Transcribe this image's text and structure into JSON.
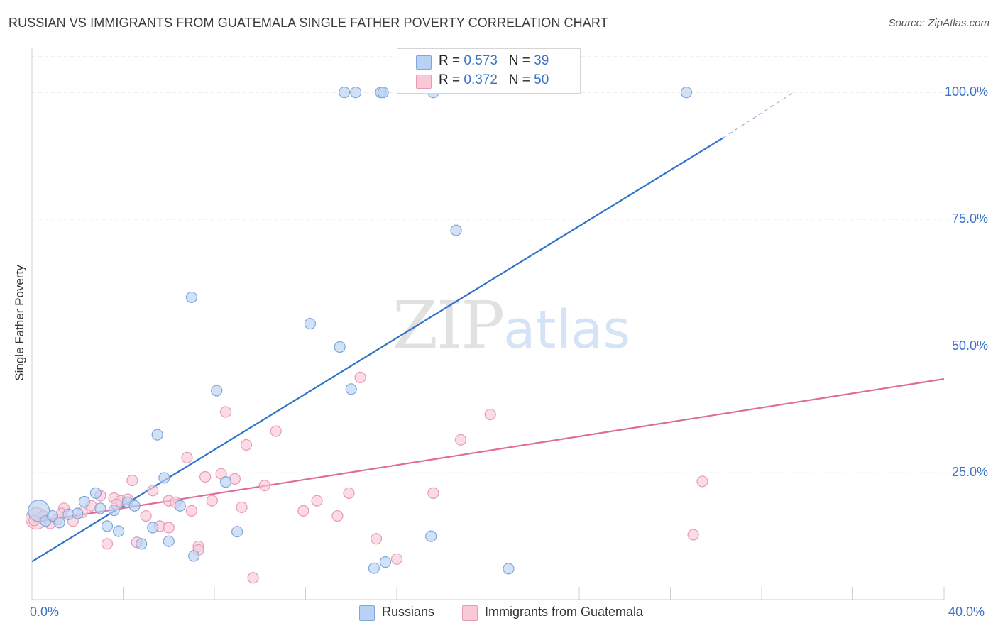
{
  "title": "RUSSIAN VS IMMIGRANTS FROM GUATEMALA SINGLE FATHER POVERTY CORRELATION CHART",
  "source": "Source: ZipAtlas.com",
  "watermark": {
    "zip": "ZIP",
    "atlas": "atlas"
  },
  "legend": {
    "r_label": "R =",
    "n_label": "N =",
    "rows": [
      {
        "r": "0.573",
        "n": "39"
      },
      {
        "r": "0.372",
        "n": "50"
      }
    ]
  },
  "colors": {
    "blue_fill": "#b9d2f3",
    "blue_stroke": "#7ea6dd",
    "blue_line": "#2f74c9",
    "pink_fill": "#f9c9d8",
    "pink_stroke": "#e99ab3",
    "pink_line": "#e06b97",
    "grid": "#e3e3e3",
    "axis": "#cfcfcf",
    "tick_text": "#3a73c8"
  },
  "chart_data": {
    "type": "scatter",
    "title": "RUSSIAN VS IMMIGRANTS FROM GUATEMALA SINGLE FATHER POVERTY CORRELATION CHART",
    "xlabel": "",
    "ylabel": "Single Father Poverty",
    "xlim": [
      0,
      40
    ],
    "ylim": [
      0,
      100
    ],
    "x_tick_labels": [
      "0.0%",
      "40.0%"
    ],
    "y_ticks": [
      25,
      50,
      75,
      100
    ],
    "y_tick_labels": [
      "25.0%",
      "50.0%",
      "75.0%",
      "100.0%"
    ],
    "grid": true,
    "legend_position": "top-center",
    "series": [
      {
        "name": "Russians",
        "points": [
          [
            0.3,
            17.5
          ],
          [
            0.6,
            15.5
          ],
          [
            0.9,
            16.5
          ],
          [
            1.2,
            15.2
          ],
          [
            1.6,
            16.8
          ],
          [
            2.0,
            17.0
          ],
          [
            2.3,
            19.3
          ],
          [
            2.8,
            21.0
          ],
          [
            3.0,
            18.0
          ],
          [
            3.3,
            14.5
          ],
          [
            3.6,
            17.6
          ],
          [
            3.8,
            13.5
          ],
          [
            4.2,
            19.2
          ],
          [
            4.5,
            18.5
          ],
          [
            4.8,
            11.0
          ],
          [
            5.3,
            14.2
          ],
          [
            5.5,
            32.5
          ],
          [
            5.8,
            24.0
          ],
          [
            6.0,
            11.5
          ],
          [
            6.5,
            18.5
          ],
          [
            7.0,
            59.6
          ],
          [
            7.1,
            8.6
          ],
          [
            8.1,
            41.2
          ],
          [
            8.5,
            23.2
          ],
          [
            9.0,
            13.4
          ],
          [
            12.2,
            54.4
          ],
          [
            13.5,
            49.8
          ],
          [
            14.0,
            41.5
          ],
          [
            15.0,
            6.2
          ],
          [
            15.5,
            7.4
          ],
          [
            15.3,
            100
          ],
          [
            17.5,
            12.5
          ],
          [
            18.6,
            72.8
          ],
          [
            20.9,
            6.1
          ],
          [
            13.7,
            100
          ],
          [
            14.2,
            100
          ],
          [
            15.4,
            100
          ],
          [
            17.6,
            100
          ],
          [
            28.7,
            100
          ]
        ]
      },
      {
        "name": "Immigrants from Guatemala",
        "points": [
          [
            0.2,
            16.0
          ],
          [
            0.5,
            16.5
          ],
          [
            0.8,
            15.0
          ],
          [
            1.1,
            15.8
          ],
          [
            1.4,
            18.0
          ],
          [
            1.8,
            15.5
          ],
          [
            2.2,
            17.2
          ],
          [
            2.6,
            18.5
          ],
          [
            3.0,
            20.5
          ],
          [
            3.3,
            11.0
          ],
          [
            3.6,
            20.0
          ],
          [
            3.9,
            19.5
          ],
          [
            4.2,
            19.8
          ],
          [
            4.4,
            23.5
          ],
          [
            4.6,
            11.3
          ],
          [
            5.0,
            16.5
          ],
          [
            5.3,
            21.5
          ],
          [
            5.6,
            14.5
          ],
          [
            6.0,
            19.5
          ],
          [
            6.3,
            19.2
          ],
          [
            6.8,
            28.0
          ],
          [
            7.0,
            17.5
          ],
          [
            7.3,
            10.5
          ],
          [
            7.6,
            24.2
          ],
          [
            7.9,
            19.5
          ],
          [
            8.3,
            24.8
          ],
          [
            8.5,
            37.0
          ],
          [
            8.9,
            23.8
          ],
          [
            9.2,
            18.2
          ],
          [
            9.4,
            30.5
          ],
          [
            9.7,
            4.3
          ],
          [
            10.2,
            22.5
          ],
          [
            10.7,
            33.2
          ],
          [
            11.9,
            17.5
          ],
          [
            12.5,
            19.5
          ],
          [
            13.4,
            16.5
          ],
          [
            13.9,
            21.0
          ],
          [
            14.4,
            43.8
          ],
          [
            15.1,
            12.0
          ],
          [
            16.0,
            8.0
          ],
          [
            17.6,
            21.0
          ],
          [
            18.8,
            31.5
          ],
          [
            20.1,
            36.5
          ],
          [
            29.0,
            12.8
          ],
          [
            29.4,
            23.3
          ],
          [
            0.1,
            15.6
          ],
          [
            1.3,
            17.0
          ],
          [
            3.7,
            18.8
          ],
          [
            6.0,
            14.2
          ],
          [
            7.3,
            9.8
          ]
        ]
      }
    ],
    "trendlines": [
      {
        "name": "Russians",
        "x": [
          0,
          30.3
        ],
        "y": [
          7.5,
          91.0
        ],
        "dashed_extension": {
          "x": [
            30.3,
            33.4
          ],
          "y": [
            91.0,
            100
          ]
        }
      },
      {
        "name": "Immigrants from Guatemala",
        "x": [
          0,
          40
        ],
        "y": [
          15.2,
          43.5
        ]
      }
    ]
  }
}
